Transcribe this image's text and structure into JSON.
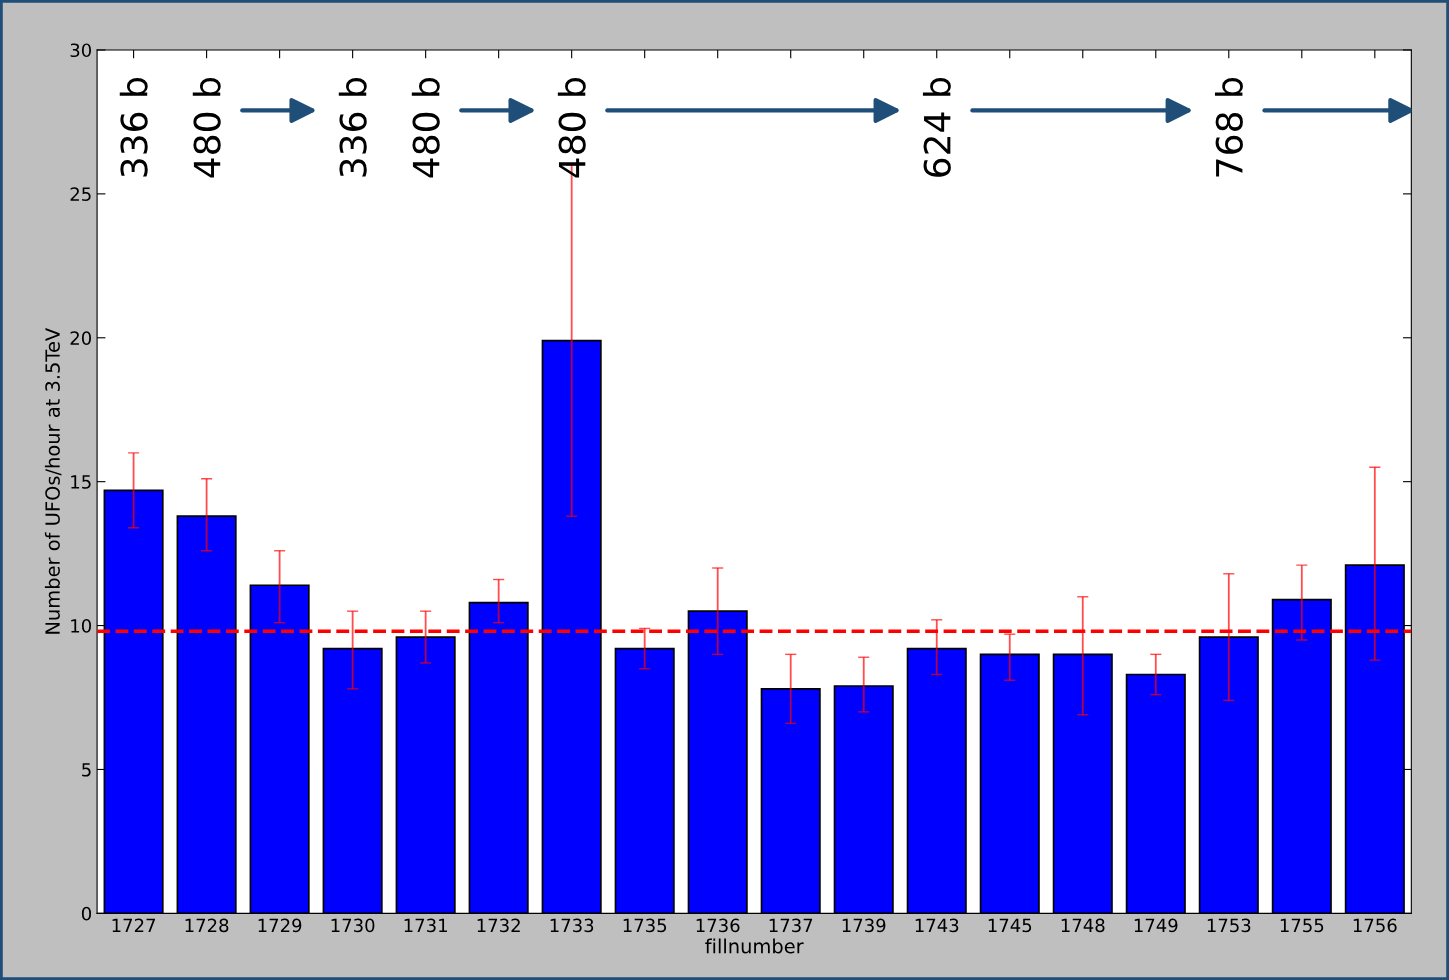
{
  "chart_data": {
    "type": "bar",
    "xlabel": "fillnumber",
    "ylabel": "Number of UFOs/hour at 3.5TeV",
    "categories": [
      "1727",
      "1728",
      "1729",
      "1730",
      "1731",
      "1732",
      "1733",
      "1735",
      "1736",
      "1737",
      "1739",
      "1743",
      "1745",
      "1748",
      "1749",
      "1753",
      "1755",
      "1756"
    ],
    "values": [
      14.7,
      13.8,
      11.4,
      9.2,
      9.6,
      10.8,
      19.9,
      9.2,
      10.5,
      7.8,
      7.9,
      9.2,
      9.0,
      9.0,
      8.3,
      9.6,
      10.9,
      12.1
    ],
    "errors": [
      [
        13.4,
        16.0
      ],
      [
        12.6,
        15.1
      ],
      [
        10.1,
        12.6
      ],
      [
        7.8,
        10.5
      ],
      [
        8.7,
        10.5
      ],
      [
        10.1,
        11.6
      ],
      [
        13.8,
        26.0
      ],
      [
        8.5,
        9.9
      ],
      [
        9.0,
        12.0
      ],
      [
        6.6,
        9.0
      ],
      [
        7.0,
        8.9
      ],
      [
        8.3,
        10.2
      ],
      [
        8.1,
        9.7
      ],
      [
        6.9,
        11.0
      ],
      [
        7.6,
        9.0
      ],
      [
        7.4,
        11.8
      ],
      [
        9.5,
        12.1
      ],
      [
        8.8,
        15.5
      ]
    ],
    "color": "#0000ff",
    "ylim": [
      0,
      30
    ],
    "yticks": [
      0,
      5,
      10,
      15,
      20,
      25,
      30
    ],
    "ref_lines": [
      {
        "axis": "y",
        "value": 9.8,
        "color": "#ff0000",
        "line_style": "dashed"
      }
    ],
    "annotations": [
      "336 b",
      "480 b",
      "336 b",
      "480 b",
      "480 b",
      "624 b",
      "768 b"
    ],
    "grid": false,
    "legend": false
  }
}
